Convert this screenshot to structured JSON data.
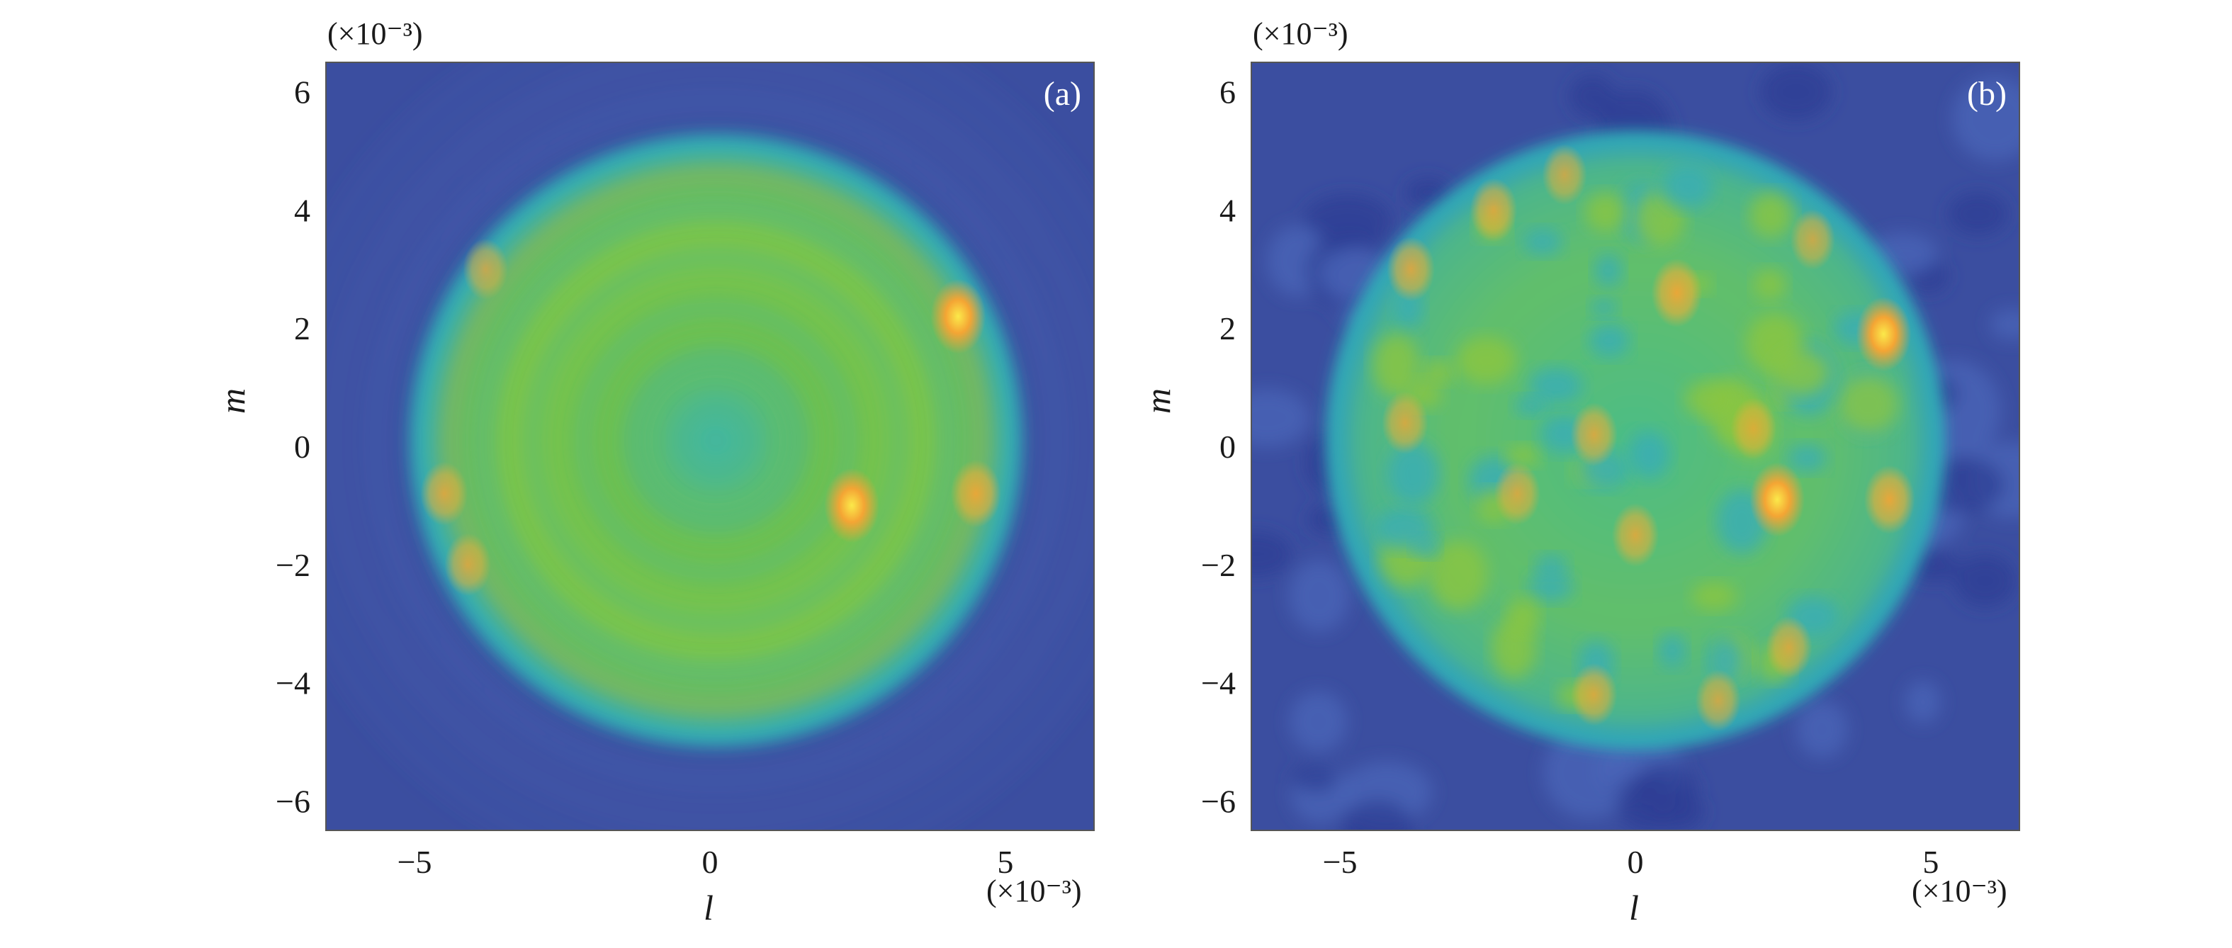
{
  "colors": {
    "background_low": "#3b4ea0",
    "mid_cyan": "#2fb6b8",
    "mid_green": "#78c44a",
    "high_orange": "#f4a534",
    "peak_yellow": "#fbe94a"
  },
  "chart_data": [
    {
      "type": "heatmap",
      "panel_label": "(a)",
      "xlabel": "l",
      "ylabel": "m",
      "x_exponent": "(×10⁻³)",
      "y_exponent": "(×10⁻³)",
      "xlim": [
        -6.5,
        6.5
      ],
      "ylim": [
        -6.5,
        6.5
      ],
      "x_ticks": [
        -5,
        0,
        5
      ],
      "y_ticks": [
        -6,
        -4,
        -2,
        0,
        2,
        4,
        6
      ],
      "x_tick_labels": [
        "−5",
        "0",
        "5"
      ],
      "y_tick_labels": [
        "−6",
        "−4",
        "−2",
        "0",
        "2",
        "4",
        "6"
      ],
      "disk_center": [
        0.1,
        0.1
      ],
      "disk_radius": 5.0,
      "hotspots": [
        {
          "x": 4.2,
          "y": 2.2,
          "level": 1.0
        },
        {
          "x": 2.4,
          "y": -1.0,
          "level": 1.0
        },
        {
          "x": 4.5,
          "y": -0.8,
          "level": 0.8
        },
        {
          "x": -4.5,
          "y": -0.8,
          "level": 0.6
        },
        {
          "x": -4.1,
          "y": -2.0,
          "level": 0.55
        },
        {
          "x": -3.8,
          "y": 3.0,
          "level": 0.45
        }
      ]
    },
    {
      "type": "heatmap",
      "panel_label": "(b)",
      "xlabel": "l",
      "ylabel": "m",
      "x_exponent": "(×10⁻³)",
      "y_exponent": "(×10⁻³)",
      "xlim": [
        -6.5,
        6.5
      ],
      "ylim": [
        -6.5,
        6.5
      ],
      "x_ticks": [
        -5,
        0,
        5
      ],
      "y_ticks": [
        -6,
        -4,
        -2,
        0,
        2,
        4,
        6
      ],
      "x_tick_labels": [
        "−5",
        "0",
        "5"
      ],
      "y_tick_labels": [
        "−6",
        "−4",
        "−2",
        "0",
        "2",
        "4",
        "6"
      ],
      "disk_center": [
        0.0,
        0.1
      ],
      "disk_radius": 5.1,
      "hotspots": [
        {
          "x": 4.2,
          "y": 1.9,
          "level": 1.0
        },
        {
          "x": 2.4,
          "y": -0.9,
          "level": 1.0
        },
        {
          "x": 0.7,
          "y": 2.6,
          "level": 0.85
        },
        {
          "x": 4.3,
          "y": -0.9,
          "level": 0.85
        },
        {
          "x": -3.8,
          "y": 3.0,
          "level": 0.65
        },
        {
          "x": -2.4,
          "y": 4.0,
          "level": 0.6
        },
        {
          "x": -3.9,
          "y": 0.4,
          "level": 0.55
        },
        {
          "x": -0.7,
          "y": 0.2,
          "level": 0.6
        },
        {
          "x": 0.0,
          "y": -1.5,
          "level": 0.6
        },
        {
          "x": -2.0,
          "y": -0.8,
          "level": 0.55
        },
        {
          "x": 2.6,
          "y": -3.4,
          "level": 0.55
        },
        {
          "x": -0.7,
          "y": -4.2,
          "level": 0.55
        },
        {
          "x": 1.4,
          "y": -4.3,
          "level": 0.5
        },
        {
          "x": 2.0,
          "y": 0.3,
          "level": 0.5
        },
        {
          "x": -1.2,
          "y": 4.6,
          "level": 0.45
        },
        {
          "x": 3.0,
          "y": 3.5,
          "level": 0.45
        }
      ]
    }
  ]
}
